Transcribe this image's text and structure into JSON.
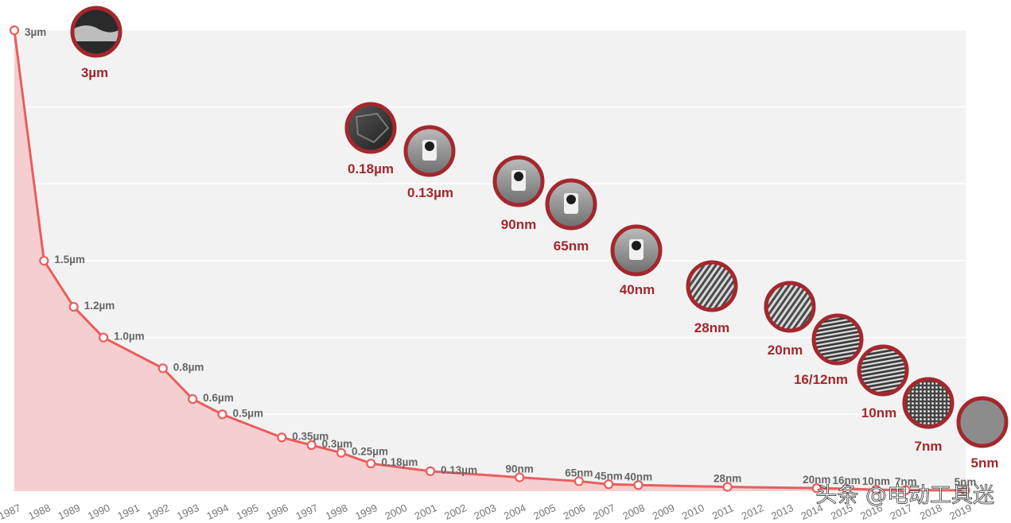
{
  "chart_data": {
    "type": "area",
    "title": "",
    "xlabel": "",
    "ylabel": "",
    "ylim": [
      0,
      3
    ],
    "grid": true,
    "x_ticks": [
      "1987",
      "1988",
      "1989",
      "1990",
      "1991",
      "1992",
      "1993",
      "1994",
      "1995",
      "1996",
      "1997",
      "1998",
      "1999",
      "2000",
      "2001",
      "2002",
      "2003",
      "2004",
      "2005",
      "2006",
      "2007",
      "2008",
      "2009",
      "2010",
      "2011",
      "2012",
      "2013",
      "2014",
      "2015",
      "2016",
      "2017",
      "2018",
      "2019"
    ],
    "points": [
      {
        "x": 1987,
        "y": 3.0,
        "label": "3µm"
      },
      {
        "x": 1988,
        "y": 1.5,
        "label": "1.5µm"
      },
      {
        "x": 1989,
        "y": 1.2,
        "label": "1.2µm"
      },
      {
        "x": 1990,
        "y": 1.0,
        "label": "1.0µm"
      },
      {
        "x": 1992,
        "y": 0.8,
        "label": "0.8µm"
      },
      {
        "x": 1993,
        "y": 0.6,
        "label": "0.6µm"
      },
      {
        "x": 1994,
        "y": 0.5,
        "label": "0.5µm"
      },
      {
        "x": 1996,
        "y": 0.35,
        "label": "0.35µm"
      },
      {
        "x": 1997,
        "y": 0.3,
        "label": "0.3µm"
      },
      {
        "x": 1998,
        "y": 0.25,
        "label": "0.25µm"
      },
      {
        "x": 1999,
        "y": 0.18,
        "label": "0.18µm"
      },
      {
        "x": 2001,
        "y": 0.13,
        "label": "0.13µm"
      },
      {
        "x": 2004,
        "y": 0.09,
        "label": "90nm"
      },
      {
        "x": 2006,
        "y": 0.065,
        "label": "65nm"
      },
      {
        "x": 2007,
        "y": 0.045,
        "label": "45nm"
      },
      {
        "x": 2008,
        "y": 0.04,
        "label": "40nm"
      },
      {
        "x": 2011,
        "y": 0.028,
        "label": "28nm"
      },
      {
        "x": 2014,
        "y": 0.02,
        "label": "20nm"
      },
      {
        "x": 2015,
        "y": 0.016,
        "label": "16nm"
      },
      {
        "x": 2016,
        "y": 0.01,
        "label": "10nm"
      },
      {
        "x": 2017,
        "y": 0.007,
        "label": "7nm"
      },
      {
        "x": 2019,
        "y": 0.005,
        "label": "5nm"
      }
    ],
    "nodes": [
      {
        "label": "3µm",
        "style": "rough"
      },
      {
        "label": "0.18µm",
        "style": "dark"
      },
      {
        "label": "0.13µm",
        "style": "gate"
      },
      {
        "label": "90nm",
        "style": "gate"
      },
      {
        "label": "65nm",
        "style": "gate"
      },
      {
        "label": "40nm",
        "style": "gate"
      },
      {
        "label": "28nm",
        "style": "lines"
      },
      {
        "label": "20nm",
        "style": "lines"
      },
      {
        "label": "16/12nm",
        "style": "fins"
      },
      {
        "label": "10nm",
        "style": "fins"
      },
      {
        "label": "7nm",
        "style": "dots"
      },
      {
        "label": "5nm",
        "style": "gray"
      }
    ],
    "watermark": "头条 @电动工具迷",
    "colors": {
      "line": "#ea5d5d",
      "area": "#f5cfd0",
      "plot_bg": "#f2f2f2",
      "grid": "#ffffff",
      "node_label": "#a3282d",
      "ring": "#a3282d",
      "point_label": "#666666",
      "tick": "#777777"
    }
  }
}
